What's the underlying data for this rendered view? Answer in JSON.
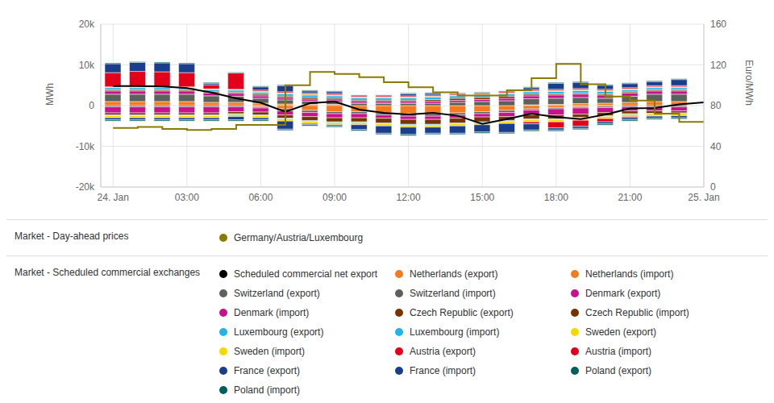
{
  "chart_data": {
    "type": "bar",
    "stacked": true,
    "grid": true,
    "legend": "bottom",
    "ylabel": "MWh",
    "y2label": "Euro/MWh",
    "x": [
      0,
      1,
      2,
      3,
      4,
      5,
      6,
      7,
      8,
      9,
      10,
      11,
      12,
      13,
      14,
      15,
      16,
      17,
      18,
      19,
      20,
      21,
      22,
      23,
      24
    ],
    "xlim": [
      -0.5,
      24
    ],
    "xticks": [
      {
        "value": 0,
        "label": "24. Jan"
      },
      {
        "value": 3,
        "label": "03:00"
      },
      {
        "value": 6,
        "label": "06:00"
      },
      {
        "value": 9,
        "label": "09:00"
      },
      {
        "value": 12,
        "label": "12:00"
      },
      {
        "value": 15,
        "label": "15:00"
      },
      {
        "value": 18,
        "label": "18:00"
      },
      {
        "value": 21,
        "label": "21:00"
      },
      {
        "value": 24,
        "label": "25. Jan"
      }
    ],
    "ylim": [
      -20000,
      20000
    ],
    "yticks": [
      {
        "value": -20000,
        "label": "-20k"
      },
      {
        "value": -10000,
        "label": "-10k"
      },
      0,
      {
        "value": 10000,
        "label": "10k"
      },
      {
        "value": 20000,
        "label": "20k"
      }
    ],
    "y2lim": [
      0,
      160
    ],
    "y2ticks": [
      0,
      40,
      80,
      120,
      160
    ],
    "legend_groups": [
      {
        "title": "Market - Day-ahead prices",
        "series": [
          "Germany/Austria/Luxembourg"
        ]
      },
      {
        "title": "Market - Scheduled commercial exchanges",
        "series": [
          "Scheduled commercial net export",
          "Netherlands (export)",
          "Netherlands (import)",
          "Switzerland (export)",
          "Switzerland (import)",
          "Denmark (export)",
          "Denmark (import)",
          "Czech Republic (export)",
          "Czech Republic (import)",
          "Luxembourg (export)",
          "Luxembourg (import)",
          "Sweden (export)",
          "Sweden (import)",
          "Austria (export)",
          "Austria (import)",
          "France (export)",
          "France (import)",
          "Poland (export)",
          "Poland (import)"
        ]
      }
    ],
    "series": [
      {
        "name": "Netherlands (export)",
        "color": "#f47a20",
        "values": [
          1000,
          1000,
          1000,
          1000,
          800,
          800,
          600,
          400,
          300,
          300,
          0,
          0,
          0,
          0,
          0,
          0,
          0,
          200,
          300,
          500,
          600,
          800,
          1000,
          1000,
          null
        ]
      },
      {
        "name": "Netherlands (import)",
        "color": "#f47a20",
        "values": [
          0,
          0,
          0,
          0,
          0,
          0,
          -300,
          -800,
          -1200,
          -1500,
          -1500,
          -1800,
          -2000,
          -2000,
          -1800,
          -1500,
          -1200,
          -800,
          -500,
          -300,
          -200,
          0,
          0,
          0,
          null
        ]
      },
      {
        "name": "Switzerland (export)",
        "color": "#5b625b",
        "values": [
          1800,
          1800,
          1800,
          1800,
          1600,
          1500,
          1200,
          1000,
          800,
          600,
          500,
          500,
          500,
          600,
          800,
          1000,
          1200,
          1500,
          1500,
          1500,
          1200,
          1500,
          1800,
          1800,
          null
        ]
      },
      {
        "name": "Switzerland (import)",
        "color": "#5b625b",
        "values": [
          -300,
          -300,
          -300,
          -300,
          -300,
          -300,
          -300,
          -500,
          -500,
          -500,
          -500,
          -500,
          -600,
          -600,
          -500,
          -500,
          -500,
          -300,
          -300,
          -300,
          -300,
          -300,
          -300,
          -300,
          null
        ]
      },
      {
        "name": "Denmark (export)",
        "color": "#c8128c",
        "values": [
          800,
          800,
          800,
          800,
          700,
          700,
          600,
          500,
          500,
          500,
          400,
          400,
          400,
          500,
          500,
          500,
          600,
          700,
          800,
          800,
          800,
          800,
          800,
          800,
          null
        ]
      },
      {
        "name": "Denmark (import)",
        "color": "#c8128c",
        "values": [
          -1500,
          -1500,
          -1500,
          -1500,
          -1500,
          -1200,
          -1000,
          -1000,
          -1000,
          -1000,
          -1000,
          -800,
          -800,
          -800,
          -800,
          -800,
          -1000,
          -1200,
          -1500,
          -1500,
          -1200,
          -1000,
          -1000,
          -1000,
          null
        ]
      },
      {
        "name": "Czech Republic (export)",
        "color": "#7a3300",
        "values": [
          300,
          300,
          300,
          300,
          300,
          300,
          400,
          400,
          400,
          400,
          400,
          400,
          400,
          400,
          500,
          500,
          500,
          400,
          300,
          300,
          300,
          300,
          300,
          300,
          null
        ]
      },
      {
        "name": "Czech Republic (import)",
        "color": "#7a3300",
        "values": [
          -500,
          -500,
          -500,
          -500,
          -500,
          -500,
          -700,
          -800,
          -1000,
          -1000,
          -1000,
          -1200,
          -1200,
          -1200,
          -1200,
          -1200,
          -1000,
          -1000,
          -1000,
          -800,
          -800,
          -700,
          -600,
          -500,
          null
        ]
      },
      {
        "name": "Luxembourg (export)",
        "color": "#20b5e8",
        "values": [
          500,
          500,
          500,
          500,
          500,
          500,
          500,
          600,
          600,
          600,
          600,
          600,
          600,
          600,
          600,
          600,
          600,
          600,
          600,
          600,
          600,
          500,
          500,
          500,
          null
        ]
      },
      {
        "name": "Luxembourg (import)",
        "color": "#20b5e8",
        "values": [
          -200,
          -200,
          -200,
          -200,
          -200,
          -200,
          -200,
          -200,
          -200,
          -200,
          -200,
          -200,
          -200,
          -200,
          -200,
          -200,
          -200,
          -200,
          -200,
          -200,
          -200,
          -200,
          -200,
          -200,
          null
        ]
      },
      {
        "name": "Sweden (export)",
        "color": "#f5d800",
        "values": [
          200,
          200,
          200,
          200,
          200,
          200,
          200,
          200,
          200,
          200,
          200,
          200,
          200,
          200,
          200,
          200,
          200,
          200,
          200,
          200,
          200,
          200,
          200,
          200,
          null
        ]
      },
      {
        "name": "Sweden (import)",
        "color": "#f5d800",
        "values": [
          -500,
          -500,
          -500,
          -500,
          -500,
          -500,
          -500,
          -500,
          -500,
          -500,
          -500,
          -500,
          -500,
          -500,
          -500,
          -500,
          -500,
          -500,
          -500,
          -500,
          -500,
          -500,
          -500,
          -500,
          null
        ]
      },
      {
        "name": "Austria (export)",
        "color": "#e3001b",
        "values": [
          3500,
          3800,
          3700,
          3500,
          1000,
          4000,
          300,
          300,
          300,
          300,
          300,
          300,
          300,
          300,
          300,
          300,
          300,
          300,
          300,
          300,
          300,
          300,
          300,
          300,
          null
        ]
      },
      {
        "name": "Austria (import)",
        "color": "#e3001b",
        "values": [
          0,
          0,
          0,
          0,
          0,
          0,
          0,
          0,
          0,
          0,
          0,
          0,
          0,
          0,
          0,
          0,
          0,
          -500,
          -1500,
          -1500,
          -800,
          -300,
          0,
          0,
          null
        ]
      },
      {
        "name": "France (export)",
        "color": "#1b3e8c",
        "values": [
          2200,
          2200,
          2200,
          2200,
          400,
          0,
          800,
          1500,
          500,
          500,
          0,
          0,
          500,
          400,
          0,
          0,
          0,
          500,
          1500,
          1500,
          1000,
          1000,
          1000,
          1500,
          null
        ]
      },
      {
        "name": "France (import)",
        "color": "#1b3e8c",
        "values": [
          -500,
          -500,
          -500,
          -500,
          -500,
          -800,
          -500,
          -2000,
          -300,
          -300,
          -1200,
          -1800,
          -1800,
          -1500,
          -1800,
          -1800,
          -2200,
          -1500,
          -500,
          -500,
          -500,
          -500,
          -500,
          -500,
          null
        ]
      },
      {
        "name": "Poland (export)",
        "color": "#005e5e",
        "values": [
          200,
          200,
          200,
          200,
          200,
          200,
          200,
          200,
          200,
          200,
          200,
          200,
          200,
          200,
          200,
          200,
          200,
          200,
          200,
          200,
          200,
          200,
          200,
          200,
          null
        ]
      },
      {
        "name": "Poland (import)",
        "color": "#005e5e",
        "values": [
          -300,
          -300,
          -300,
          -300,
          -300,
          -300,
          -300,
          -300,
          -300,
          -300,
          -300,
          -300,
          -300,
          -300,
          -300,
          -300,
          -300,
          -300,
          -300,
          -300,
          -300,
          -300,
          -300,
          -300,
          null
        ]
      },
      {
        "name": "Scheduled commercial net export",
        "color": "#000000",
        "type": "line",
        "line_style": "solid",
        "values": [
          4800,
          4800,
          4700,
          4300,
          3200,
          1800,
          700,
          -1500,
          600,
          1000,
          -1000,
          -1800,
          -2200,
          -1800,
          -2500,
          -4500,
          -3300,
          -2000,
          -2800,
          -3300,
          -2200,
          -700,
          -600,
          300,
          800
        ]
      },
      {
        "name": "Germany/Austria/Luxembourg",
        "color": "#8b7a00",
        "type": "line",
        "line_style": "step",
        "axis": "y2",
        "values": [
          58,
          59,
          57,
          56,
          57,
          61,
          61,
          100,
          113,
          111,
          108,
          103,
          98,
          93,
          90,
          90,
          95,
          107,
          121,
          101,
          89,
          85,
          72,
          64,
          64
        ]
      }
    ]
  }
}
